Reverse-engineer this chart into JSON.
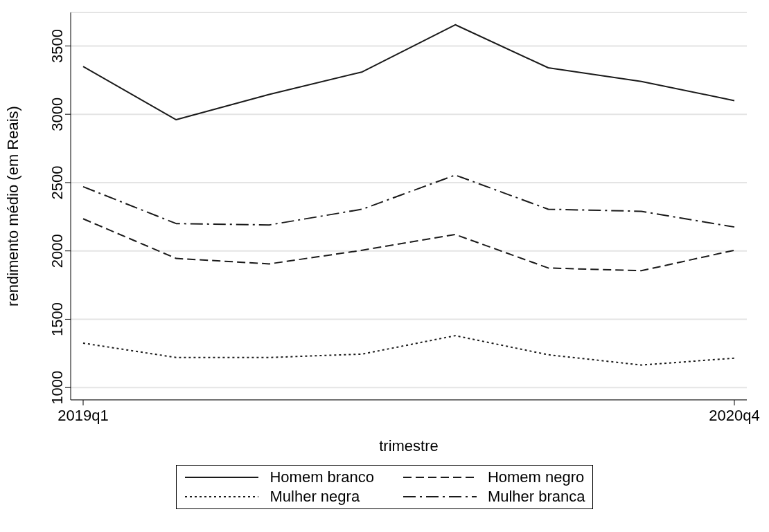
{
  "chart_data": {
    "type": "line",
    "xlabel": "trimestre",
    "ylabel": "rendimento médio (em Reais)",
    "categories": [
      "2019q1",
      null,
      null,
      null,
      null,
      null,
      null,
      "2020q4"
    ],
    "ylim": [
      910,
      3745
    ],
    "yticks": [
      1000,
      1500,
      2000,
      2500,
      3000,
      3500
    ],
    "grid": "y",
    "legend": "bottom",
    "marker": "none",
    "series": [
      {
        "name": "Homem branco",
        "color": "#1a1a1a",
        "line_style": "solid",
        "values": [
          3350,
          2960,
          3145,
          3310,
          3655,
          3340,
          3240,
          3100
        ]
      },
      {
        "name": "Homem negro",
        "color": "#1a1a1a",
        "line_style": "dashed",
        "values": [
          2235,
          1945,
          1905,
          2005,
          2120,
          1875,
          1855,
          2005
        ]
      },
      {
        "name": "Mulher negra",
        "color": "#1a1a1a",
        "line_style": "dotted",
        "values": [
          1325,
          1220,
          1220,
          1245,
          1380,
          1240,
          1165,
          1215
        ]
      },
      {
        "name": "Mulher branca",
        "color": "#1a1a1a",
        "line_style": "dashdot",
        "values": [
          2470,
          2200,
          2190,
          2305,
          2555,
          2305,
          2290,
          2175
        ]
      }
    ]
  }
}
